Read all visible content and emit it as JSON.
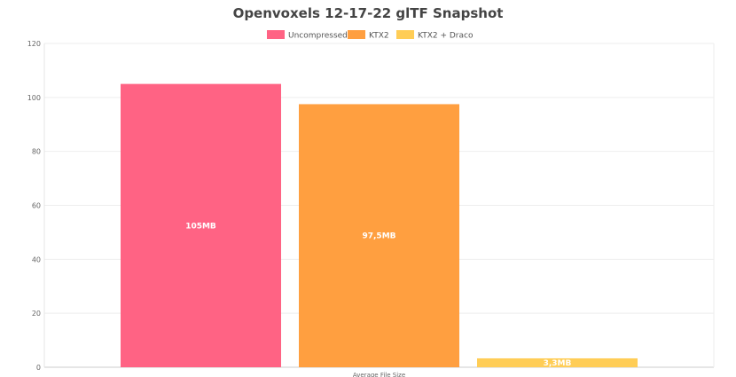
{
  "chart_data": {
    "type": "bar",
    "title": "Openvoxels 12-17-22 glTF Snapshot",
    "categories": [
      "Average File Size"
    ],
    "series": [
      {
        "name": "Uncompressed",
        "values": [
          105
        ],
        "label": "105MB",
        "color": "#ff6384"
      },
      {
        "name": "KTX2",
        "values": [
          97.5
        ],
        "label": "97,5MB",
        "color": "#ff9f40"
      },
      {
        "name": "KTX2 + Draco",
        "values": [
          3.3
        ],
        "label": "3,3MB",
        "color": "#ffcd56"
      }
    ],
    "yticks": [
      0,
      20,
      40,
      60,
      80,
      100,
      120
    ],
    "ylim": [
      0,
      120
    ],
    "grid": true,
    "legend_position": "top-center"
  }
}
